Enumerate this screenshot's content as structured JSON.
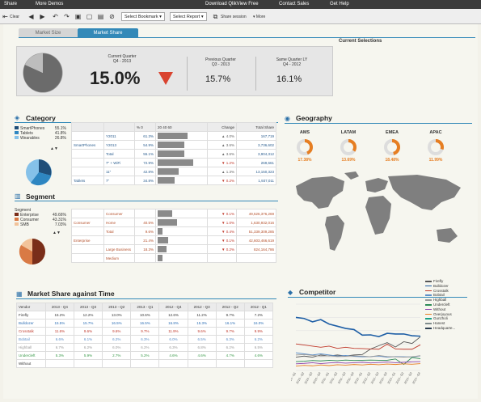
{
  "topbar": {
    "share": "Share",
    "more_demos": "More Demos",
    "download": "Download QlikView Free",
    "contact": "Contact Sales",
    "help": "Get Help"
  },
  "toolbar": {
    "clear": "Clear",
    "select_bookmark": "Select Bookmark",
    "select_report": "Select Report",
    "share_session": "Share session",
    "more": "More"
  },
  "tabs": {
    "market_size": "Market Size",
    "market_share": "Market Share"
  },
  "current_selections": "Current Selections",
  "kpi": {
    "current_label_1": "Current Quarter",
    "current_label_2": "Q4 - 2013",
    "current_value": "15.0%",
    "prev_label_1": "Previous Quarter",
    "prev_label_2": "Q3 - 2013",
    "prev_value": "15.7%",
    "ly_label_1": "Same Quarter LY",
    "ly_label_2": "Q4 - 2012",
    "ly_value": "16.1%",
    "colors": {
      "down": "#d9432f",
      "gauge": "#6b6b6b"
    }
  },
  "category": {
    "title": "Category",
    "legend": [
      {
        "label": "SmartPhones",
        "value": "55.1%",
        "color": "#1f4e79"
      },
      {
        "label": "Tablets",
        "value": "41.8%",
        "color": "#2e86c1"
      },
      {
        "label": "Wearables",
        "value": "26.8%",
        "color": "#85c1e9"
      }
    ],
    "header": {
      "pct": "% 0",
      "t20": "20",
      "t40": "40",
      "t60": "60",
      "change": "Change",
      "total": "Total Share"
    },
    "rows": [
      {
        "group": "",
        "item": "Y2011",
        "pct": "61.3%",
        "change": "4.0%",
        "total": "167,719",
        "bar": 0.61,
        "up": true
      },
      {
        "group": "SmartPhones",
        "item": "Y2013",
        "pct": "54.9%",
        "change": "3.6%",
        "total": "3,736,602",
        "bar": 0.55,
        "up": true
      },
      {
        "group": "",
        "item": "Total",
        "pct": "55.1%",
        "change": "3.6%",
        "total": "3,904,312",
        "bar": 0.55,
        "up": true
      },
      {
        "group": "",
        "item": "7\" + WiFi",
        "pct": "72.9%",
        "change": "1.2%",
        "total": "269,661",
        "bar": 0.73,
        "up": false
      },
      {
        "group": "",
        "item": "11\"",
        "pct": "42.8%",
        "change": "1.3%",
        "total": "13,150,323",
        "bar": 0.43,
        "up": true
      },
      {
        "group": "Tablets",
        "item": "7\"",
        "pct": "34.8%",
        "change": "0.2%",
        "total": "1,937,011",
        "bar": 0.35,
        "up": false
      }
    ]
  },
  "segment": {
    "title": "Segment",
    "legend_title": "Segment",
    "legend": [
      {
        "label": "Enterprise",
        "value": "49.66%",
        "color": "#7a2e1a"
      },
      {
        "label": "Consumer",
        "value": "43.31%",
        "color": "#d97a45"
      },
      {
        "label": "SMB",
        "value": "7.03%",
        "color": "#f2c39a"
      }
    ],
    "rows": [
      {
        "group": "",
        "item": "Consumer",
        "pct": "",
        "change": "0.1%",
        "total": "49,526,376,269",
        "bar": 0.3,
        "up": false
      },
      {
        "group": "Consumer",
        "item": "Home",
        "pct": "40.5%",
        "change": "1.0%",
        "total": "1,630,932,016",
        "bar": 0.4,
        "up": false
      },
      {
        "group": "",
        "item": "Total",
        "pct": "9.6%",
        "change": "0.4%",
        "total": "51,339,309,285",
        "bar": 0.1,
        "up": false
      },
      {
        "group": "Enterprise",
        "item": "",
        "pct": "21.4%",
        "change": "0.1%",
        "total": "42,603,466,619",
        "bar": 0.21,
        "up": false
      },
      {
        "group": "",
        "item": "Large Business",
        "pct": "18.3%",
        "change": "0.2%",
        "total": "824,164,786",
        "bar": 0.18,
        "up": false
      },
      {
        "group": "",
        "item": "Medium",
        "pct": "",
        "change": "",
        "total": "",
        "bar": 0.1,
        "up": false
      }
    ]
  },
  "geography": {
    "title": "Geography",
    "regions": [
      {
        "name": "AMS",
        "value": "17.38%"
      },
      {
        "name": "LATAM",
        "value": "13.69%"
      },
      {
        "name": "EMEA",
        "value": "18.48%"
      },
      {
        "name": "APAC",
        "value": "11.99%"
      }
    ]
  },
  "market_share_time": {
    "title": "Market Share against Time",
    "headers": [
      "Vendor",
      "2013 - Q4",
      "2013 - Q3",
      "2013 - Q2",
      "2013 - Q1",
      "2012 - Q4",
      "2012 - Q3",
      "2012 - Q2",
      "2012 - Q1"
    ],
    "rows": [
      {
        "vendor": "Firefly",
        "color": "#333333",
        "values": [
          "15.2%",
          "12.2%",
          "13.0%",
          "10.6%",
          "12.6%",
          "11.2%",
          "9.7%",
          "7.2%"
        ]
      },
      {
        "vendor": "Bulldozer",
        "color": "#2e6fb5",
        "values": [
          "15.5%",
          "15.7%",
          "16.5%",
          "16.5%",
          "16.8%",
          "15.3%",
          "16.1%",
          "16.0%"
        ]
      },
      {
        "vendor": "Crosstalk",
        "color": "#c0392b",
        "values": [
          "11.6%",
          "9.6%",
          "9.6%",
          "9.7%",
          "11.9%",
          "9.6%",
          "9.7%",
          "9.9%"
        ]
      },
      {
        "vendor": "Bobtail",
        "color": "#5d8fc9",
        "values": [
          "6.6%",
          "6.1%",
          "6.2%",
          "6.3%",
          "6.0%",
          "6.5%",
          "6.3%",
          "6.2%"
        ]
      },
      {
        "vendor": "Highball",
        "color": "#9a9a9a",
        "values": [
          "6.7%",
          "6.2%",
          "6.0%",
          "6.2%",
          "6.3%",
          "6.8%",
          "6.2%",
          "6.5%"
        ]
      },
      {
        "vendor": "Undercleft",
        "color": "#3a9a4a",
        "values": [
          "5.3%",
          "5.9%",
          "2.7%",
          "5.2%",
          "4.6%",
          "4.6%",
          "4.7%",
          "4.6%"
        ]
      },
      {
        "vendor": "Without",
        "color": "#333333",
        "values": [
          "",
          "",
          "",
          "",
          "",
          "",
          "",
          ""
        ]
      }
    ]
  },
  "competitor": {
    "title": "Competitor",
    "legend": [
      {
        "name": "Firefly",
        "color": "#555555"
      },
      {
        "name": "Bulldozer",
        "color": "#1f5fa6"
      },
      {
        "name": "Crosstalk",
        "color": "#c0392b"
      },
      {
        "name": "Bobtail",
        "color": "#5d8fc9"
      },
      {
        "name": "Highball",
        "color": "#9a9a9a"
      },
      {
        "name": "Undercleft",
        "color": "#2e8b57"
      },
      {
        "name": "Without",
        "color": "#8e44ad"
      },
      {
        "name": "Overjoyous",
        "color": "#e67e22"
      },
      {
        "name": "Gunzholi",
        "color": "#16a085"
      },
      {
        "name": "Hanest",
        "color": "#7f8c8d"
      },
      {
        "name": "Headquarte...",
        "color": "#2c3e50"
      }
    ]
  },
  "chart_data": {
    "type": "line",
    "title": "Competitor",
    "x": [
      "2010 - Q1",
      "2010 - Q2",
      "2010 - Q3",
      "2010 - Q4",
      "2011 - Q1",
      "2011 - Q2",
      "2011 - Q3",
      "2011 - Q4",
      "2012 - Q1",
      "2012 - Q2",
      "2012 - Q3",
      "2012 - Q4",
      "2013 - Q1",
      "2013 - Q2",
      "2013 - Q3",
      "2013 - Q4"
    ],
    "series": [
      {
        "name": "Firefly",
        "values": [
          6,
          6.5,
          6,
          7,
          6.5,
          7,
          6.5,
          7,
          7.2,
          9.7,
          11.2,
          12.6,
          10.6,
          13.0,
          12.2,
          15.2
        ]
      },
      {
        "name": "Bulldozer",
        "values": [
          24,
          23.5,
          22,
          23,
          21,
          20,
          19,
          18.5,
          16.0,
          16.1,
          15.3,
          16.8,
          16.5,
          16.5,
          15.7,
          15.5
        ]
      },
      {
        "name": "Crosstalk",
        "values": [
          12,
          11.5,
          11,
          10.5,
          11,
          10,
          10.5,
          10,
          9.9,
          9.7,
          9.6,
          11.9,
          9.7,
          9.6,
          9.6,
          11.6
        ]
      },
      {
        "name": "Bobtail",
        "values": [
          8,
          7.5,
          7,
          7.5,
          7,
          6.5,
          6.8,
          6.4,
          6.2,
          6.3,
          6.5,
          6.0,
          6.3,
          6.2,
          6.1,
          6.6
        ]
      },
      {
        "name": "Highball",
        "values": [
          7,
          7.2,
          6.8,
          6.5,
          6.6,
          6.3,
          6.4,
          6.6,
          6.5,
          6.2,
          6.8,
          6.3,
          6.2,
          6.0,
          6.2,
          6.7
        ]
      },
      {
        "name": "Undercleft",
        "values": [
          4,
          4.2,
          4.5,
          4.3,
          4.6,
          4.4,
          4.7,
          4.5,
          4.6,
          4.7,
          4.6,
          4.6,
          5.2,
          2.7,
          5.9,
          5.3
        ]
      },
      {
        "name": "Without",
        "values": [
          3,
          3.2,
          3.5,
          3.1,
          3.4,
          3.6,
          3.3,
          3.5,
          3.7,
          3.4,
          3.6,
          3.8,
          3.5,
          3.7,
          3.9,
          4.0
        ]
      },
      {
        "name": "Overjoyous",
        "values": [
          2,
          2.3,
          2.1,
          2.5,
          2.2,
          2.6,
          2.4,
          2.7,
          2.5,
          2.8,
          2.6,
          2.9,
          2.7,
          3.0,
          2.8,
          3.1
        ]
      }
    ],
    "ylim": [
      0,
      30
    ],
    "legend": "right"
  }
}
